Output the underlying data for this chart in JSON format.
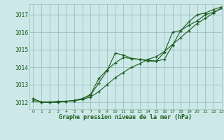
{
  "title": "Graphe pression niveau de la mer (hPa)",
  "bg_color": "#cce8e8",
  "grid_color": "#9fbfbf",
  "line_color": "#1a5c1a",
  "xlim": [
    -0.5,
    23
  ],
  "ylim": [
    1011.6,
    1017.6
  ],
  "yticks": [
    1012,
    1013,
    1014,
    1015,
    1016,
    1017
  ],
  "xticks": [
    0,
    1,
    2,
    3,
    4,
    5,
    6,
    7,
    8,
    9,
    10,
    11,
    12,
    13,
    14,
    15,
    16,
    17,
    18,
    19,
    20,
    21,
    22,
    23
  ],
  "series1": {
    "x": [
      0,
      1,
      2,
      3,
      4,
      5,
      6,
      7,
      8,
      9,
      10,
      11,
      12,
      13,
      14,
      15,
      16,
      17,
      18,
      19,
      20,
      21,
      22,
      23
    ],
    "y": [
      1012.1,
      1012.0,
      1012.0,
      1012.05,
      1012.05,
      1012.1,
      1012.15,
      1012.3,
      1012.6,
      1013.0,
      1013.4,
      1013.7,
      1014.0,
      1014.2,
      1014.45,
      1014.6,
      1014.9,
      1015.3,
      1015.7,
      1016.1,
      1016.5,
      1016.8,
      1017.1,
      1017.4
    ]
  },
  "series2": {
    "x": [
      0,
      1,
      2,
      3,
      4,
      5,
      6,
      7,
      8,
      9,
      10,
      11,
      12,
      13,
      14,
      15,
      16,
      17,
      18,
      19,
      20,
      21,
      22,
      23
    ],
    "y": [
      1012.2,
      1012.0,
      1012.0,
      1012.0,
      1012.05,
      1012.1,
      1012.2,
      1012.4,
      1013.1,
      1013.8,
      1014.8,
      1014.7,
      1014.5,
      1014.45,
      1014.35,
      1014.35,
      1014.45,
      1015.25,
      1016.1,
      1016.4,
      1016.65,
      1017.0,
      1017.15,
      1017.35
    ]
  },
  "series3": {
    "x": [
      0,
      1,
      2,
      3,
      4,
      5,
      6,
      7,
      8,
      9,
      10,
      11,
      12,
      13,
      14,
      15,
      16,
      17,
      18,
      19,
      20,
      21,
      22,
      23
    ],
    "y": [
      1012.2,
      1012.0,
      1012.0,
      1012.0,
      1012.05,
      1012.1,
      1012.2,
      1012.45,
      1013.35,
      1013.85,
      1014.25,
      1014.55,
      1014.5,
      1014.45,
      1014.4,
      1014.35,
      1014.85,
      1016.0,
      1016.1,
      1016.6,
      1017.0,
      1017.1,
      1017.3,
      1017.45
    ]
  }
}
